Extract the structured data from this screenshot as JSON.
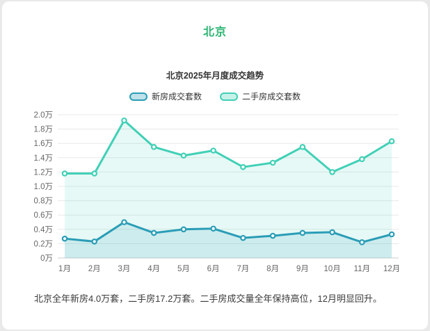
{
  "page": {
    "city_title": "北京",
    "summary_text": "北京全年新房4.0万套，二手房17.2万套。二手房成交量全年保持高位，12月明显回升。"
  },
  "colors": {
    "title_green": "#2bb572",
    "new_home_teal": "#2a9db6",
    "resale_turquoise": "#41d0b6",
    "grid_line": "#e8e8e8",
    "axis_line": "#cccccc",
    "tick_label": "#666666"
  },
  "chart_data": {
    "type": "line",
    "title": "北京2025年月度成交趋势",
    "categories": [
      "1月",
      "2月",
      "3月",
      "4月",
      "5月",
      "6月",
      "7月",
      "8月",
      "9月",
      "10月",
      "11月",
      "12月"
    ],
    "series": [
      {
        "name": "新房成交套数",
        "color": "#2a9db6",
        "values": [
          0.27,
          0.23,
          0.5,
          0.35,
          0.4,
          0.41,
          0.28,
          0.31,
          0.35,
          0.36,
          0.22,
          0.33
        ]
      },
      {
        "name": "二手房成交套数",
        "color": "#41d0b6",
        "values": [
          1.18,
          1.18,
          1.92,
          1.55,
          1.43,
          1.5,
          1.27,
          1.33,
          1.55,
          1.2,
          1.38,
          1.63
        ]
      }
    ],
    "y_ticks": [
      "0万",
      "0.2万",
      "0.4万",
      "0.6万",
      "0.8万",
      "1.0万",
      "1.2万",
      "1.4万",
      "1.6万",
      "1.8万",
      "2.0万"
    ],
    "ylim": [
      0,
      2.0
    ],
    "area": true,
    "grid": true,
    "legend_position": "top"
  }
}
